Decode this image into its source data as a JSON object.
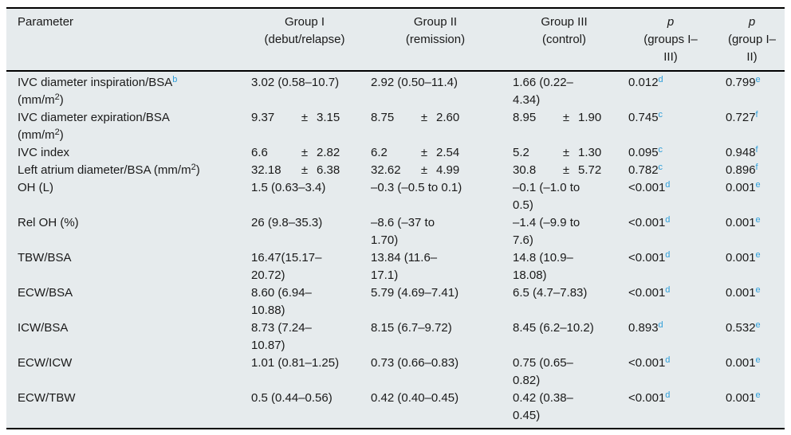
{
  "colors": {
    "table_background": "#e6ebed",
    "footnote_accent": "#2e9ed9",
    "rule_color": "#000000",
    "text_color": "#1a1a1a"
  },
  "table": {
    "column_keys": [
      "parameter",
      "group-i",
      "group-ii",
      "group-iii",
      "p-groups-i-iii",
      "p-group-i-ii"
    ],
    "headers": [
      "Parameter",
      "Group I\n(debut/relapse)",
      "Group II\n(remission)",
      "Group III\n(control)",
      "*p*\n(groups I–\nIII)",
      "*p*\n(group I–\nII)"
    ],
    "rows": [
      {
        "cells": [
          "IVC diameter inspiration/BSA^{b}\n(mm/m^{2})",
          "3.02 (0.58–10.7)",
          "2.92 (0.50–11.4)",
          "1.66 (0.22–\n4.34)",
          "0.012^{d}",
          "0.799^{e}"
        ]
      },
      {
        "cells": [
          "IVC diameter expiration/BSA\n(mm/m^{2})",
          "9.37 ± 3.15",
          "8.75 ± 2.60",
          "8.95 ± 1.90",
          "0.745^{c}",
          "0.727^{f}"
        ]
      },
      {
        "cells": [
          "IVC index",
          "6.6 ± 2.82",
          "6.2 ± 2.54",
          "5.2 ± 1.30",
          "0.095^{c}",
          "0.948^{f}"
        ]
      },
      {
        "cells": [
          "Left atrium diameter/BSA (mm/m^{2})",
          "32.18 ± 6.38",
          "32.62 ± 4.99",
          "30.8 ± 5.72",
          "0.782^{c}",
          "0.896^{f}"
        ]
      },
      {
        "cells": [
          "OH (L)",
          "1.5 (0.63–3.4)",
          "–0.3 (–0.5 to 0.1)",
          "–0.1 (–1.0 to\n0.5)",
          "<0.001^{d}",
          "0.001^{e}"
        ]
      },
      {
        "cells": [
          "Rel OH (%)",
          "26 (9.8–35.3)",
          "–8.6 (–37 to\n1.70)",
          "–1.4 (–9.9 to\n7.6)",
          "<0.001^{d}",
          "0.001^{e}"
        ]
      },
      {
        "cells": [
          "TBW/BSA",
          "16.47(15.17–\n20.72)",
          "13.84 (11.6–\n17.1)",
          "14.8 (10.9–\n18.08)",
          "<0.001^{d}",
          "0.001^{e}"
        ]
      },
      {
        "cells": [
          "ECW/BSA",
          "8.60 (6.94–\n10.88)",
          "5.79 (4.69–7.41)",
          "6.5 (4.7–7.83)",
          "<0.001^{d}",
          "0.001^{e}"
        ]
      },
      {
        "cells": [
          "ICW/BSA",
          "8.73 (7.24–\n10.87)",
          "8.15 (6.7–9.72)",
          "8.45 (6.2–10.2)",
          "0.893^{d}",
          "0.532^{e}"
        ]
      },
      {
        "cells": [
          "ECW/ICW",
          "1.01 (0.81–1.25)",
          "0.73 (0.66–0.83)",
          "0.75 (0.65–\n0.82)",
          "<0.001^{d}",
          "0.001^{e}"
        ]
      },
      {
        "cells": [
          "ECW/TBW",
          "0.5 (0.44–0.56)",
          "0.42 (0.40–0.45)",
          "0.42 (0.38–\n0.45)",
          "<0.001^{d}",
          "0.001^{e}"
        ]
      }
    ]
  }
}
